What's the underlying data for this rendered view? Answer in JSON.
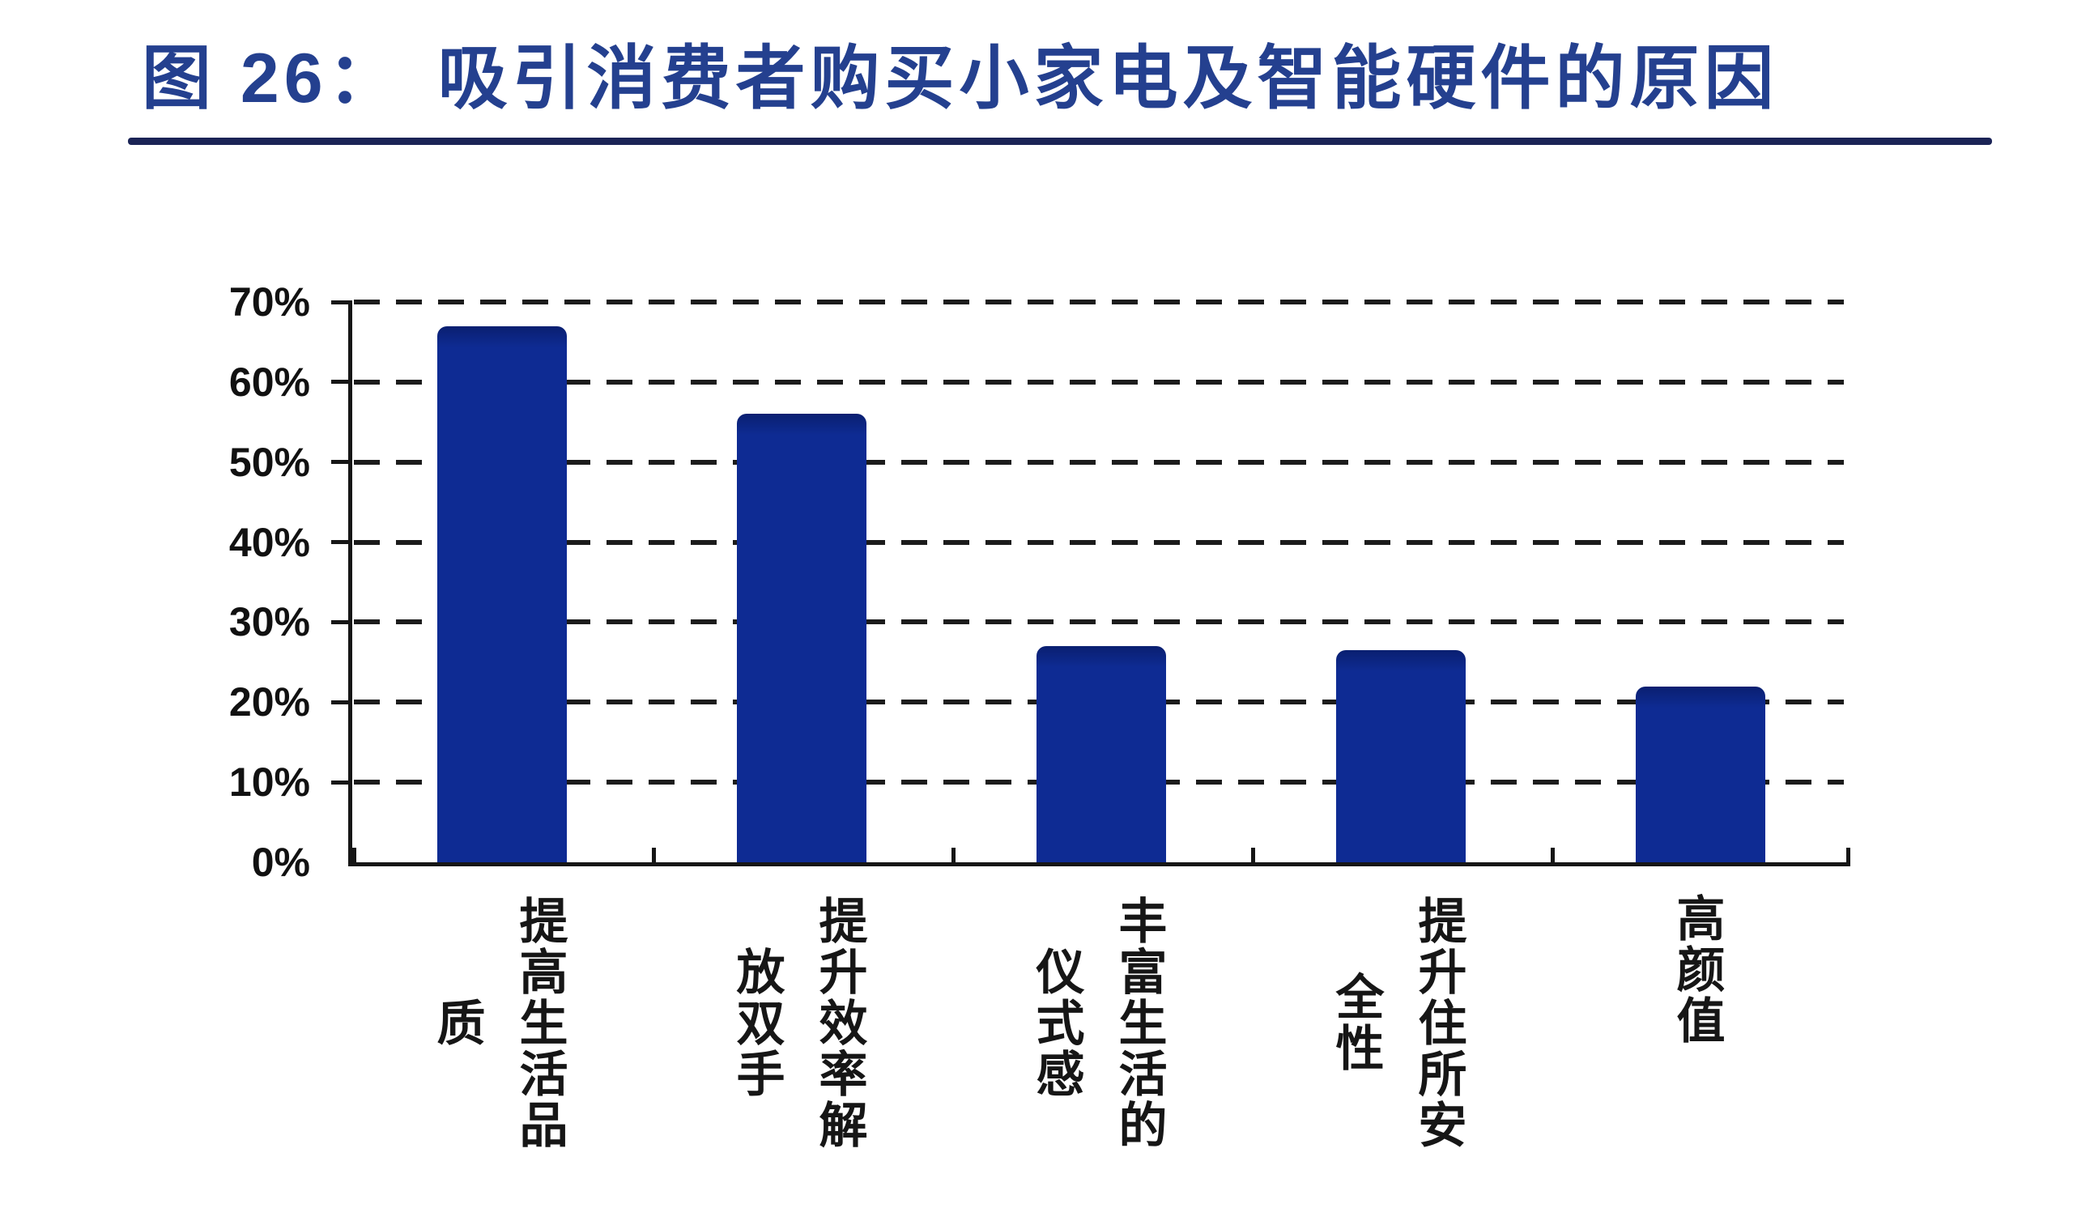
{
  "header": {
    "title_prefix": "图 26：",
    "title": "吸引消费者购买小家电及智能硬件的原因",
    "title_color": "#24408f",
    "rule_color": "#1b2456"
  },
  "chart_data": {
    "type": "bar",
    "title": "图 26：吸引消费者购买小家电及智能硬件的原因",
    "categories": [
      "提高生活品质",
      "提升效率解放双手",
      "丰富生活的仪式感",
      "提升住所安全性",
      "高颜值"
    ],
    "values": [
      67,
      56,
      27,
      26.5,
      22
    ],
    "unit": "%",
    "xlabel": "",
    "ylabel": "",
    "ylim": [
      0,
      70
    ],
    "y_ticks": [
      {
        "label": "70%",
        "value": 70
      },
      {
        "label": "60%",
        "value": 60
      },
      {
        "label": "50%",
        "value": 50
      },
      {
        "label": "40%",
        "value": 40
      },
      {
        "label": "30%",
        "value": 30
      },
      {
        "label": "20%",
        "value": 20
      },
      {
        "label": "10%",
        "value": 10
      },
      {
        "label": "0%",
        "value": 0
      }
    ],
    "grid": "horizontal-dashed",
    "legend_position": "none",
    "bar_color": "#0e2b93",
    "bar_top_color": "#0a1f70",
    "axis_color": "#161616"
  }
}
